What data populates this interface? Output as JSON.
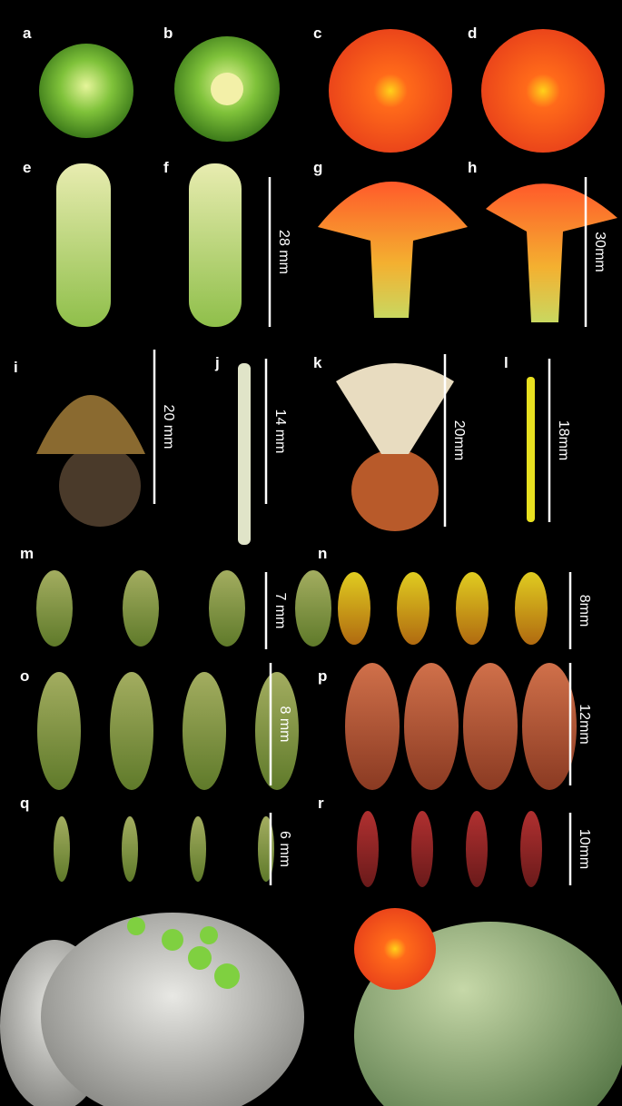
{
  "panels": [
    "a",
    "b",
    "c",
    "d",
    "e",
    "f",
    "g",
    "h",
    "i",
    "j",
    "k",
    "l",
    "m",
    "n",
    "o",
    "p",
    "q",
    "r"
  ],
  "scale_bars": [
    "28 mm",
    "30mm",
    "20 mm",
    "14 mm",
    "20mm",
    "18mm",
    "7 mm",
    "8mm",
    "8 mm",
    "12mm",
    "6 mm",
    "10mm"
  ]
}
